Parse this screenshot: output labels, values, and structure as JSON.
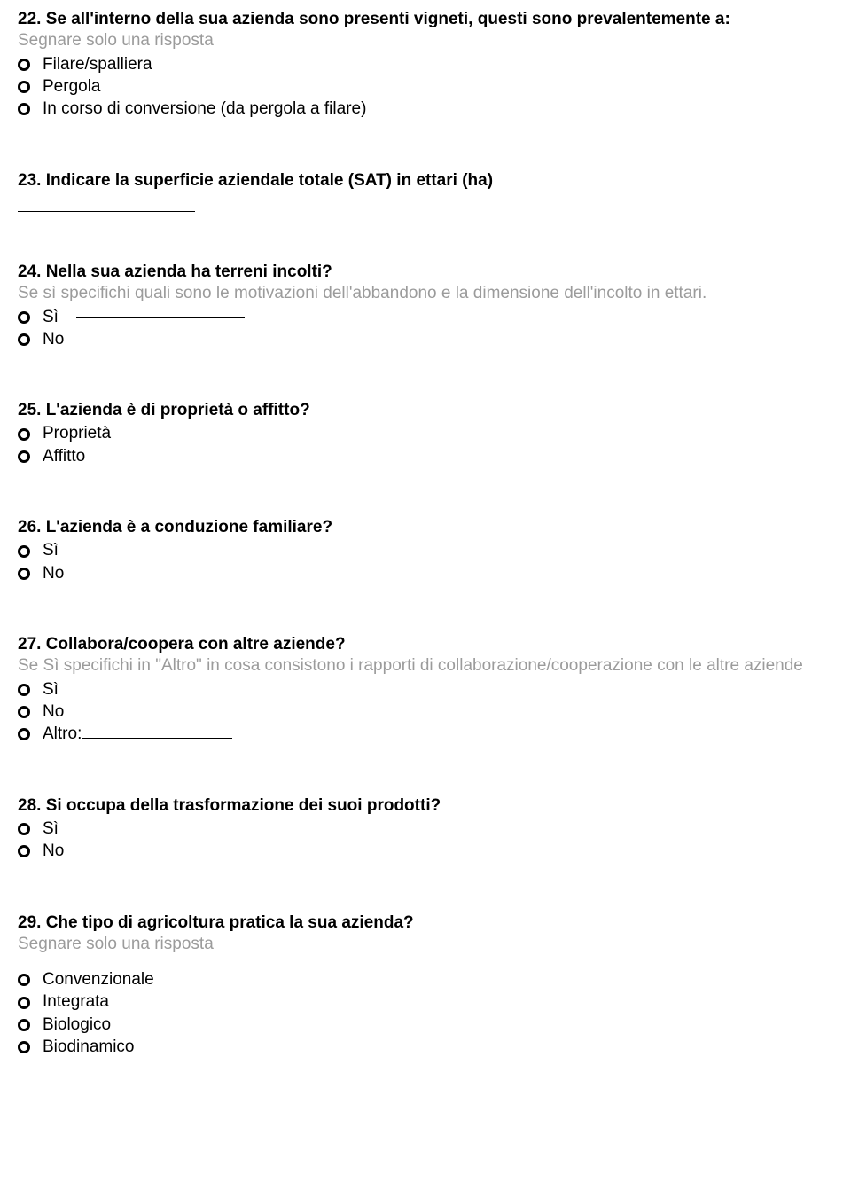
{
  "q22": {
    "title": "22. Se all'interno della sua azienda sono presenti vigneti, questi sono prevalentemente a:",
    "hint": "Segnare solo una risposta",
    "options": [
      "Filare/spalliera",
      "Pergola",
      "In corso di conversione (da pergola a filare)"
    ]
  },
  "q23": {
    "title": "23. Indicare la superficie aziendale totale (SAT) in ettari (ha)"
  },
  "q24": {
    "title": "24. Nella sua azienda ha terreni incolti?",
    "hint": "Se sì specifichi quali sono le motivazioni dell'abbandono e la dimensione dell'incolto in ettari.",
    "options": [
      "Sì",
      "No"
    ]
  },
  "q25": {
    "title": "25. L'azienda è di proprietà o affitto?",
    "options": [
      "Proprietà",
      "Affitto"
    ]
  },
  "q26": {
    "title": "26. L'azienda è a conduzione familiare?",
    "options": [
      "Sì",
      "No"
    ]
  },
  "q27": {
    "title": "27. Collabora/coopera con altre aziende?",
    "hint": "Se Sì specifichi in \"Altro\" in cosa consistono i rapporti di collaborazione/cooperazione con le altre aziende",
    "options": [
      "Sì",
      "No"
    ],
    "altro_label": "Altro:"
  },
  "q28": {
    "title": "28. Si occupa della trasformazione dei suoi prodotti?",
    "options": [
      "Sì",
      "No"
    ]
  },
  "q29": {
    "title": "29. Che tipo di agricoltura pratica la sua azienda?",
    "hint": "Segnare solo una risposta",
    "options": [
      "Convenzionale",
      "Integrata",
      "Biologico",
      "Biodinamico"
    ]
  }
}
